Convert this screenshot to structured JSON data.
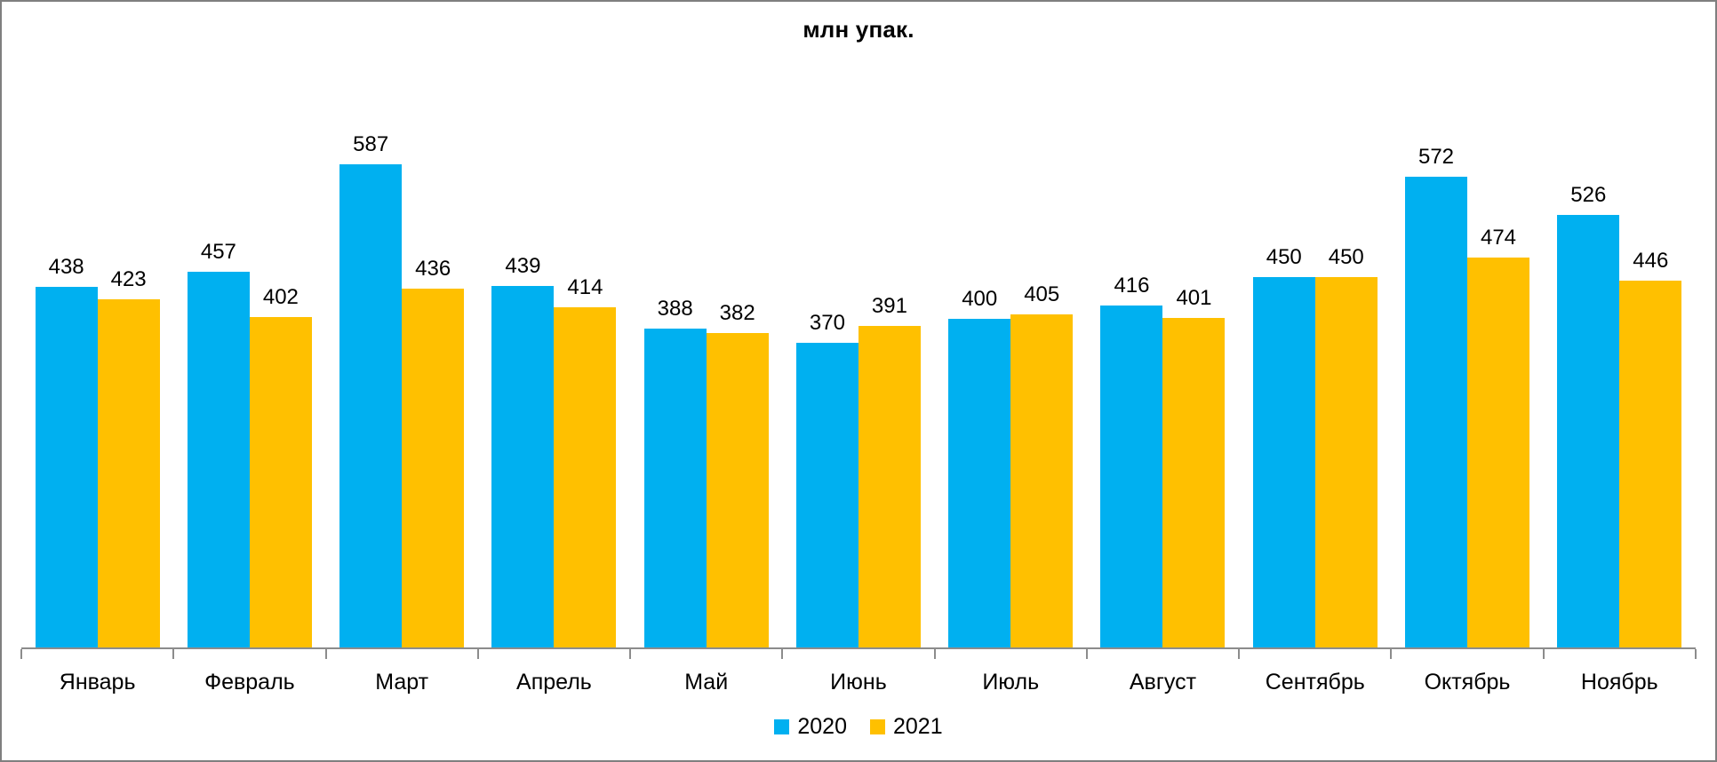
{
  "title": "млн упак.",
  "chart_data": {
    "type": "bar",
    "title": "млн упак.",
    "categories": [
      "Январь",
      "Февраль",
      "Март",
      "Апрель",
      "Май",
      "Июнь",
      "Июль",
      "Август",
      "Сентябрь",
      "Октябрь",
      "Ноябрь"
    ],
    "series": [
      {
        "name": "2020",
        "color": "#00B0F0",
        "values": [
          438,
          457,
          587,
          439,
          388,
          370,
          400,
          416,
          450,
          572,
          526
        ]
      },
      {
        "name": "2021",
        "color": "#FFC000",
        "values": [
          423,
          402,
          436,
          414,
          382,
          391,
          405,
          401,
          450,
          474,
          446
        ]
      }
    ],
    "xlabel": "",
    "ylabel": "",
    "ylim": [
      0,
      650
    ],
    "grid": false,
    "data_labels": true,
    "legend_position": "bottom"
  },
  "colors": {
    "axis": "#8C8C8C",
    "frame_border": "#7F7F7F",
    "text": "#000000",
    "background": "#FFFFFF"
  }
}
